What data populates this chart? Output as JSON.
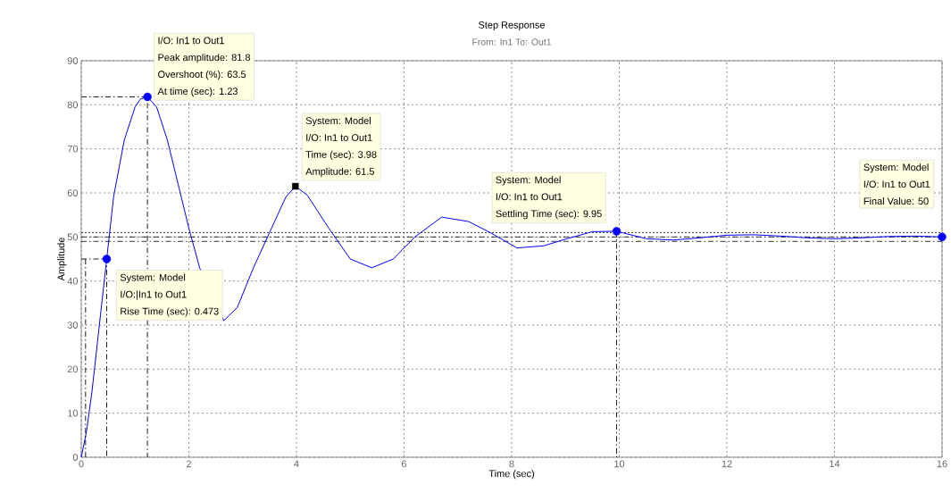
{
  "chart_data": {
    "type": "line",
    "title": "Step Response",
    "subtitle": "From: In1  To: Out1",
    "xlabel": "Time (sec)",
    "ylabel": "Amplitude",
    "xlim": [
      0,
      16
    ],
    "ylim": [
      0,
      90
    ],
    "xticks": [
      0,
      2,
      4,
      6,
      8,
      10,
      12,
      14,
      16
    ],
    "yticks": [
      0,
      10,
      20,
      30,
      40,
      50,
      60,
      70,
      80,
      90
    ],
    "grid": true,
    "series": [
      {
        "color": "#0000ff",
        "line_style": "solid",
        "marker": "none",
        "x": [
          0,
          0.1,
          0.2,
          0.3,
          0.473,
          0.6,
          0.8,
          1.0,
          1.1,
          1.23,
          1.4,
          1.6,
          1.8,
          2.0,
          2.2,
          2.4,
          2.65,
          2.9,
          3.2,
          3.5,
          3.8,
          3.98,
          4.2,
          4.6,
          5.0,
          5.4,
          5.8,
          6.2,
          6.7,
          7.2,
          7.6,
          8.1,
          8.6,
          9.0,
          9.5,
          9.95,
          10.5,
          11.0,
          11.5,
          12.0,
          12.5,
          13.0,
          13.5,
          14.0,
          14.5,
          15.0,
          15.5,
          16
        ],
        "values": [
          0,
          6,
          15,
          26,
          45,
          59,
          72,
          79.5,
          81.3,
          81.8,
          79.5,
          72,
          62,
          52,
          43,
          null,
          31,
          34,
          43,
          51,
          59,
          61.5,
          59.5,
          52,
          45,
          43,
          45,
          50,
          54.5,
          53.5,
          51,
          47.5,
          48,
          49.5,
          51.2,
          51.3,
          49.6,
          49.3,
          49.8,
          50.4,
          50.5,
          50.2,
          49.8,
          49.6,
          49.8,
          50.1,
          50.2,
          50
        ]
      },
      {
        "type": "scatter",
        "color": "#0000ff",
        "marker": "circle",
        "x": [
          0.473,
          1.23,
          9.95,
          16
        ],
        "values": [
          45,
          81.8,
          51.3,
          50
        ]
      },
      {
        "type": "scatter",
        "color": "#000000",
        "marker": "square",
        "x": [
          3.98
        ],
        "values": [
          61.5
        ]
      },
      {
        "color": "#000000",
        "line_style": "dashed",
        "marker": "none",
        "x": [
          0,
          1.23,
          1.23
        ],
        "values": [
          81.8,
          81.8,
          0
        ]
      },
      {
        "color": "#000000",
        "line_style": "dashed",
        "marker": "none",
        "x": [
          0,
          0.473,
          0.473
        ],
        "values": [
          45,
          45,
          0
        ]
      },
      {
        "color": "#000000",
        "line_style": "dashed",
        "marker": "none",
        "x": [
          0.08,
          0.08
        ],
        "values": [
          0,
          45
        ]
      },
      {
        "color": "#000000",
        "line_style": "dashed",
        "marker": "none",
        "x": [
          9.95,
          9.95
        ],
        "values": [
          51.3,
          0
        ]
      }
    ],
    "ref_lines": [
      {
        "axis": "y",
        "value": 50,
        "color": "#000000",
        "line_style": "dashed"
      },
      {
        "axis": "y",
        "value": 51,
        "color": "#000000",
        "line_style": "dotted"
      },
      {
        "axis": "y",
        "value": 49,
        "color": "#000000",
        "line_style": "dashed"
      }
    ],
    "annotations": [
      "I/O: In1 to Out1",
      "Peak amplitude: 81.8",
      "Overshoot (%): 63.5",
      "At time (sec): 1.23",
      "System: Model",
      "I/O: In1 to Out1",
      "Time (sec): 3.98",
      "Amplitude: 61.5",
      "System: Model",
      "I/O: In1 to Out1",
      "Settling Time (sec): 9.95",
      "System: Model",
      "I/O: In1 to Out1",
      "Final Value: 50",
      "System: Model",
      "I/O:|In1 to Out1",
      "Rise Time (sec): 0.473"
    ]
  }
}
